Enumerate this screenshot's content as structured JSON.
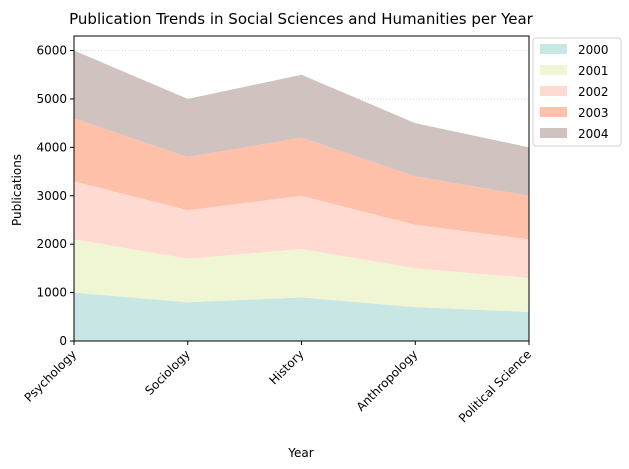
{
  "chart_data": {
    "type": "area",
    "stacked": true,
    "title": "Publication Trends in Social Sciences and Humanities per Year",
    "xlabel": "Year",
    "ylabel": "Publications",
    "categories": [
      "Psychology",
      "Sociology",
      "History",
      "Anthropology",
      "Political Science"
    ],
    "ylim": [
      0,
      6300
    ],
    "yticks": [
      0,
      1000,
      2000,
      3000,
      4000,
      5000,
      6000
    ],
    "grid": "horizontal dotted",
    "legend_position": "outside top-right",
    "series": [
      {
        "name": "2000",
        "values": [
          1000,
          800,
          900,
          700,
          600
        ],
        "color": "#c7e6e4"
      },
      {
        "name": "2001",
        "values": [
          1100,
          900,
          1000,
          800,
          700
        ],
        "color": "#f0f6d3"
      },
      {
        "name": "2002",
        "values": [
          1200,
          1000,
          1100,
          900,
          800
        ],
        "color": "#ffdad0"
      },
      {
        "name": "2003",
        "values": [
          1300,
          1100,
          1200,
          1000,
          900
        ],
        "color": "#ffc0aa"
      },
      {
        "name": "2004",
        "values": [
          1400,
          1200,
          1300,
          1100,
          1000
        ],
        "color": "#d0c2bf"
      }
    ]
  }
}
